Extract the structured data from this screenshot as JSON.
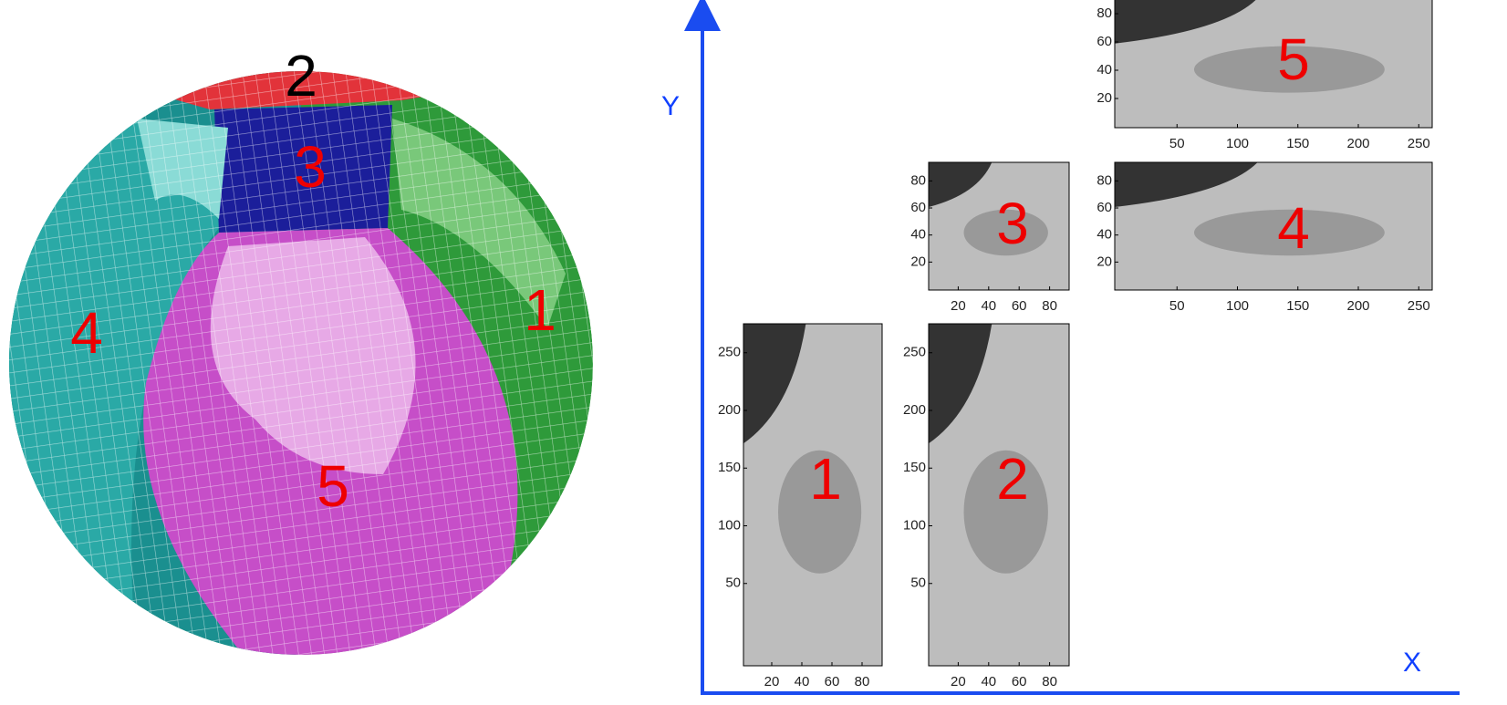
{
  "globe": {
    "faces": [
      {
        "label": "1"
      },
      {
        "label": "2"
      },
      {
        "label": "3"
      },
      {
        "label": "4"
      },
      {
        "label": "5"
      }
    ]
  },
  "axes": {
    "y_label": "Y",
    "x_label": "X"
  },
  "panels": [
    {
      "label": "1",
      "xticks": [
        20,
        40,
        60,
        80
      ],
      "yticks": [
        50,
        100,
        150,
        200,
        250
      ]
    },
    {
      "label": "2",
      "xticks": [
        20,
        40,
        60,
        80
      ],
      "yticks": [
        50,
        100,
        150,
        200,
        250
      ]
    },
    {
      "label": "3",
      "xticks": [
        20,
        40,
        60,
        80
      ],
      "yticks": [
        20,
        40,
        60,
        80
      ]
    },
    {
      "label": "4",
      "xticks": [
        50,
        100,
        150,
        200,
        250
      ],
      "yticks": [
        20,
        40,
        60,
        80
      ]
    },
    {
      "label": "5",
      "xticks": [
        50,
        100,
        150,
        200,
        250
      ],
      "yticks": [
        20,
        40,
        60,
        80
      ]
    }
  ]
}
